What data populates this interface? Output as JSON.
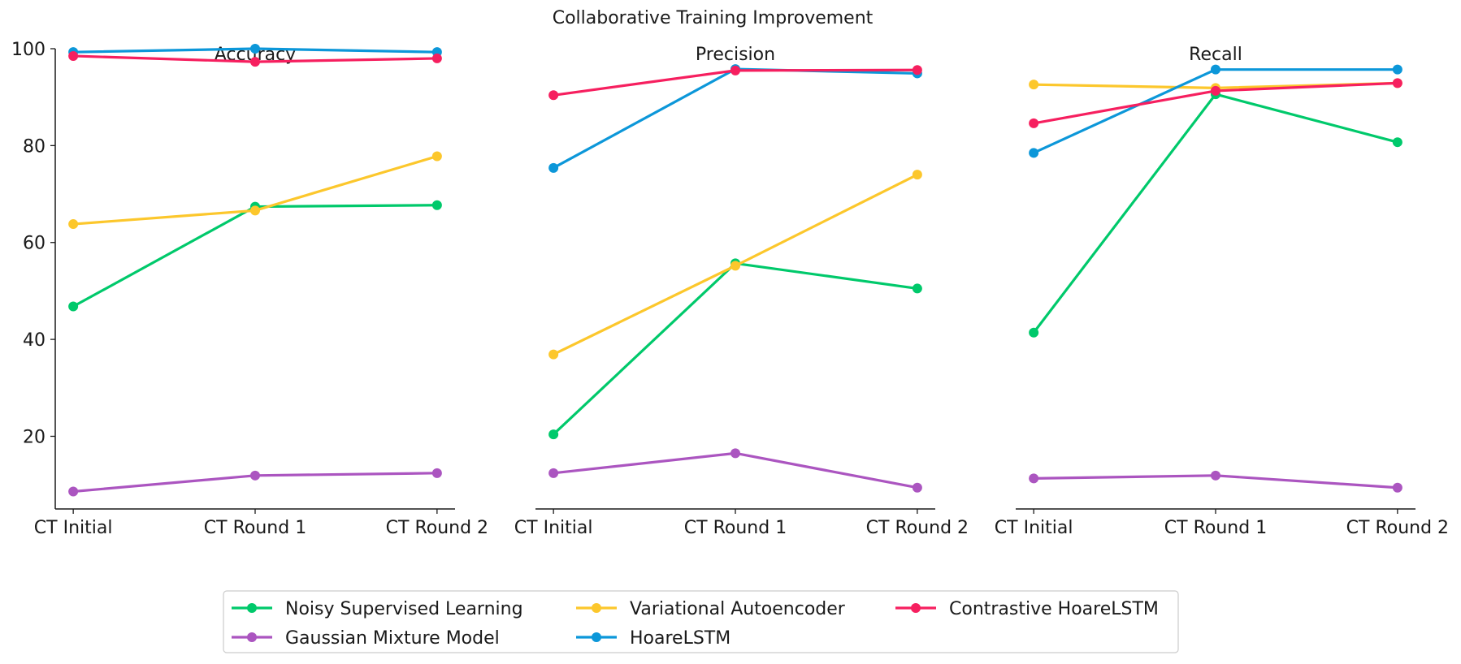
{
  "title": "Collaborative Training Improvement",
  "chart_data": {
    "type": "line",
    "title": "Collaborative Training Improvement",
    "categories": [
      "CT Initial",
      "CT Round 1",
      "CT Round 2"
    ],
    "ylim": [
      5,
      100
    ],
    "yticks": [
      20,
      40,
      60,
      80,
      100
    ],
    "grid": false,
    "legend_position": "bottom-center",
    "series": [
      {
        "name": "Noisy Supervised Learning",
        "color": "#00c96b"
      },
      {
        "name": "Gaussian Mixture Model",
        "color": "#ab55c0"
      },
      {
        "name": "Variational Autoencoder",
        "color": "#fcc72c"
      },
      {
        "name": "HoareLSTM",
        "color": "#0c97d9"
      },
      {
        "name": "Contrastive HoareLSTM",
        "color": "#f61f5f"
      }
    ],
    "panels": [
      {
        "title": "Accuracy",
        "values": {
          "Noisy Supervised Learning": [
            46.8,
            67.4,
            67.7
          ],
          "Gaussian Mixture Model": [
            8.6,
            11.9,
            12.4
          ],
          "Variational Autoencoder": [
            63.8,
            66.6,
            77.8
          ],
          "HoareLSTM": [
            99.3,
            100.0,
            99.3
          ],
          "Contrastive HoareLSTM": [
            98.5,
            97.3,
            98.0
          ]
        }
      },
      {
        "title": "Precision",
        "values": {
          "Noisy Supervised Learning": [
            20.4,
            55.7,
            50.5
          ],
          "Gaussian Mixture Model": [
            12.4,
            16.5,
            9.4
          ],
          "Variational Autoencoder": [
            36.9,
            55.2,
            74.0
          ],
          "HoareLSTM": [
            75.4,
            95.8,
            94.9
          ],
          "Contrastive HoareLSTM": [
            90.4,
            95.5,
            95.6
          ]
        }
      },
      {
        "title": "Recall",
        "values": {
          "Noisy Supervised Learning": [
            41.4,
            90.6,
            80.7
          ],
          "Gaussian Mixture Model": [
            11.3,
            11.9,
            9.4
          ],
          "Variational Autoencoder": [
            92.6,
            91.9,
            92.9
          ],
          "HoareLSTM": [
            78.5,
            95.7,
            95.7
          ],
          "Contrastive HoareLSTM": [
            84.6,
            91.3,
            92.9
          ]
        }
      }
    ]
  }
}
